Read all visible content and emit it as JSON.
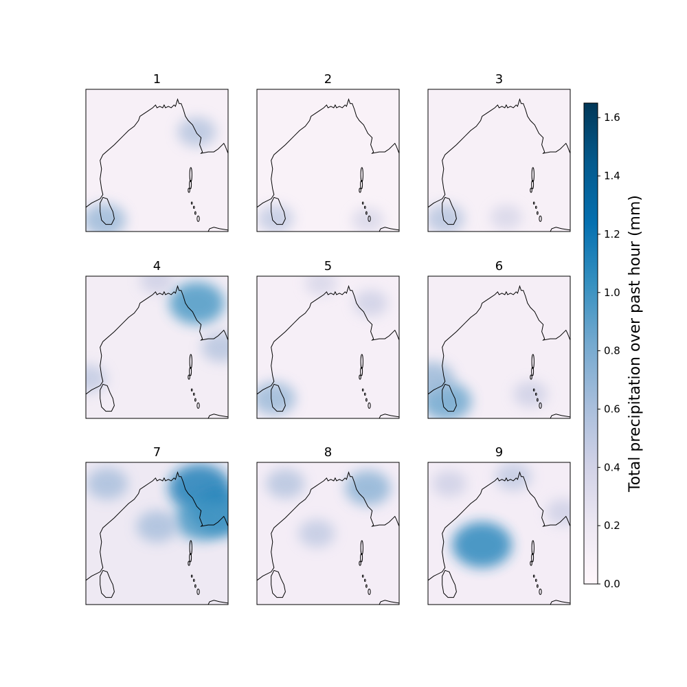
{
  "chart_data": {
    "type": "heatmap",
    "panels": [
      {
        "title": "1",
        "intensity": 0.22,
        "hotspots": [
          {
            "lon": 0.13,
            "lat": 0.92,
            "value": 0.55
          },
          {
            "lon": 0.78,
            "lat": 0.3,
            "value": 0.45
          }
        ]
      },
      {
        "title": "2",
        "intensity": 0.15,
        "hotspots": [
          {
            "lon": 0.13,
            "lat": 0.91,
            "value": 0.4
          },
          {
            "lon": 0.78,
            "lat": 0.92,
            "value": 0.3
          }
        ]
      },
      {
        "title": "3",
        "intensity": 0.22,
        "hotspots": [
          {
            "lon": 0.12,
            "lat": 0.91,
            "value": 0.45
          },
          {
            "lon": 0.55,
            "lat": 0.9,
            "value": 0.3
          }
        ]
      },
      {
        "title": "4",
        "intensity": 0.32,
        "hotspots": [
          {
            "lon": 0.78,
            "lat": 0.19,
            "value": 0.8
          },
          {
            "lon": 0.95,
            "lat": 0.5,
            "value": 0.45
          },
          {
            "lon": 0.02,
            "lat": 0.72,
            "value": 0.4
          },
          {
            "lon": 0.5,
            "lat": 0.03,
            "value": 0.35
          }
        ]
      },
      {
        "title": "5",
        "intensity": 0.25,
        "hotspots": [
          {
            "lon": 0.12,
            "lat": 0.86,
            "value": 0.55
          },
          {
            "lon": 0.8,
            "lat": 0.19,
            "value": 0.35
          },
          {
            "lon": 0.45,
            "lat": 0.05,
            "value": 0.3
          }
        ]
      },
      {
        "title": "6",
        "intensity": 0.27,
        "hotspots": [
          {
            "lon": 0.13,
            "lat": 0.88,
            "value": 0.7
          },
          {
            "lon": 0.03,
            "lat": 0.72,
            "value": 0.55
          },
          {
            "lon": 0.72,
            "lat": 0.83,
            "value": 0.35
          }
        ]
      },
      {
        "title": "7",
        "intensity": 0.45,
        "hotspots": [
          {
            "lon": 0.8,
            "lat": 0.18,
            "value": 0.95
          },
          {
            "lon": 0.96,
            "lat": 0.35,
            "value": 0.9
          },
          {
            "lon": 0.82,
            "lat": 0.4,
            "value": 0.8
          },
          {
            "lon": 0.15,
            "lat": 0.15,
            "value": 0.5
          },
          {
            "lon": 0.5,
            "lat": 0.45,
            "value": 0.5
          }
        ]
      },
      {
        "title": "8",
        "intensity": 0.3,
        "hotspots": [
          {
            "lon": 0.78,
            "lat": 0.18,
            "value": 0.6
          },
          {
            "lon": 0.2,
            "lat": 0.15,
            "value": 0.45
          },
          {
            "lon": 0.42,
            "lat": 0.5,
            "value": 0.4
          }
        ]
      },
      {
        "title": "9",
        "intensity": 0.3,
        "hotspots": [
          {
            "lon": 0.38,
            "lat": 0.58,
            "value": 0.9
          },
          {
            "lon": 0.6,
            "lat": 0.1,
            "value": 0.4
          },
          {
            "lon": 0.95,
            "lat": 0.35,
            "value": 0.35
          },
          {
            "lon": 0.15,
            "lat": 0.15,
            "value": 0.35
          }
        ]
      }
    ],
    "colorbar": {
      "label": "Total precipitation over past hour (mm)",
      "vmin": 0.0,
      "vmax": 1.65,
      "ticks": [
        "0.0",
        "0.2",
        "0.4",
        "0.6",
        "0.8",
        "1.0",
        "1.2",
        "1.4",
        "1.6"
      ],
      "tick_values": [
        0.0,
        0.2,
        0.4,
        0.6,
        0.8,
        1.0,
        1.2,
        1.4,
        1.6
      ],
      "colormap": [
        "#fff7fb",
        "#ece7f2",
        "#d0d1e6",
        "#a6bddb",
        "#74a9cf",
        "#3690c0",
        "#0570b0",
        "#045a8d",
        "#023858"
      ]
    },
    "coastline_color": "#000000"
  }
}
